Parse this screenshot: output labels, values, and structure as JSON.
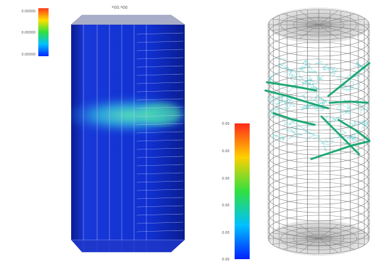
{
  "left_panel": {
    "top_label": "*00.*00",
    "legend": {
      "ticks": [
        "0.00000",
        "0.00000",
        "0.00000"
      ],
      "colors": [
        "#ff3a1a",
        "#ffe000",
        "#30e040",
        "#00c0ff",
        "#0026ff"
      ]
    },
    "tank_colors": {
      "body": "#1030d0",
      "dark_edge": "#0a1c90",
      "band": "#40e0c0",
      "cap": "#b0b4cc"
    }
  },
  "right_panel": {
    "legend": {
      "ticks": [
        "0.00",
        "0.00",
        "0.00",
        "0.00",
        "0.00",
        "0.00"
      ],
      "colors": [
        "#ff2a1a",
        "#ffd000",
        "#30e040",
        "#00c0ff",
        "#0020ff"
      ]
    },
    "mesh_color": "#808080",
    "streamline_colors": [
      "#18a878",
      "#40c8c8",
      "#10a060"
    ]
  }
}
